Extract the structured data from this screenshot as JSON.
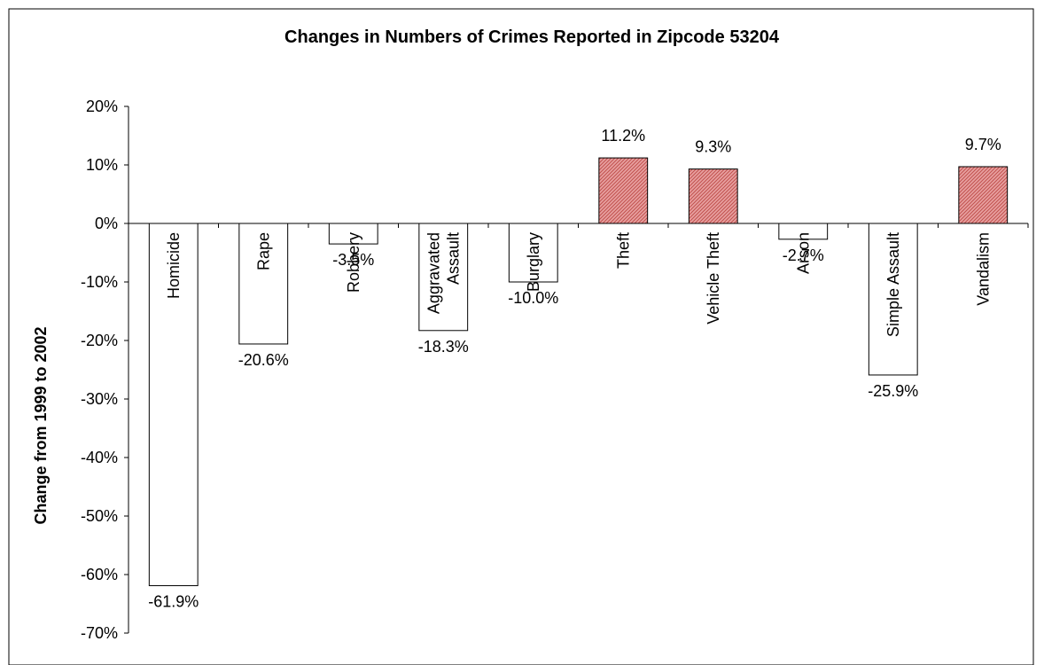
{
  "chart_data": {
    "type": "bar",
    "title": "Changes in Numbers of Crimes Reported in Zipcode 53204",
    "xlabel": "",
    "ylabel": "Change from 1999 to 2002",
    "ylim": [
      -70,
      20
    ],
    "y_ticks": [
      20,
      10,
      0,
      -10,
      -20,
      -30,
      -40,
      -50,
      -60,
      -70
    ],
    "y_tick_labels": [
      "20%",
      "10%",
      "0%",
      "-10%",
      "-20%",
      "-30%",
      "-40%",
      "-50%",
      "-60%",
      "-70%"
    ],
    "categories": [
      "Homicide",
      "Rape",
      "Robbery",
      "Aggravated Assault",
      "Burglary",
      "Theft",
      "Vehicle Theft",
      "Arson",
      "Simple Assault",
      "Vandalism"
    ],
    "category_label_lines": [
      [
        "Homicide"
      ],
      [
        "Rape"
      ],
      [
        "Robbery"
      ],
      [
        "Aggravated",
        "Assault"
      ],
      [
        "Burglary"
      ],
      [
        "Theft"
      ],
      [
        "Vehicle Theft"
      ],
      [
        "Arson"
      ],
      [
        "Simple Assault"
      ],
      [
        "Vandalism"
      ]
    ],
    "values": [
      -61.9,
      -20.6,
      -3.5,
      -18.3,
      -10.0,
      11.2,
      9.3,
      -2.7,
      -25.9,
      9.7
    ],
    "data_labels": [
      "-61.9%",
      "-20.6%",
      "-3.5%",
      "-18.3%",
      "-10.0%",
      "11.2%",
      "9.3%",
      "-2.7%",
      "-25.9%",
      "9.7%"
    ],
    "grid": false,
    "legend": "none",
    "colors": {
      "negative_fill": "#ffffff",
      "positive_fill": "#e8a0a0",
      "positive_hatch": "#c0504d",
      "bar_stroke": "#000000",
      "axis": "#000000"
    }
  }
}
